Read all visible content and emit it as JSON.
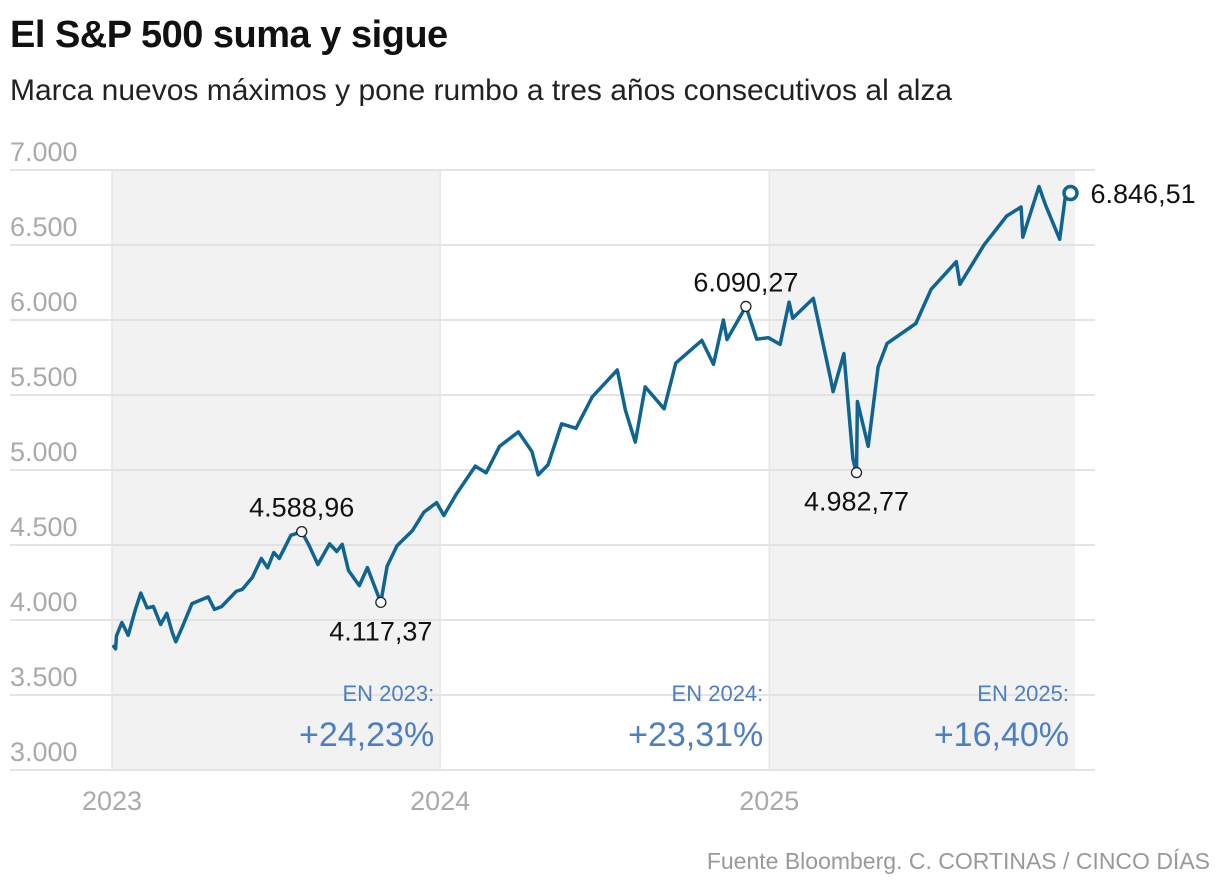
{
  "title": "El S&P 500 suma y sigue",
  "subtitle": "Marca nuevos máximos y pone rumbo a tres años consecutivos al alza",
  "source": "Fuente Bloomberg. C. CORTINAS / CINCO DÍAS",
  "colors": {
    "line": "#0f6491",
    "shade": "#f2f2f2",
    "grid": "#dcdcdc",
    "axis_text": "#aaaaaa",
    "yearly": "#4d7fc0"
  },
  "chart_data": {
    "type": "line",
    "title": "El S&P 500 suma y sigue",
    "subtitle": "Marca nuevos máximos y pone rumbo a tres años consecutivos al alza",
    "ylim": [
      3000,
      7000
    ],
    "xlim": [
      "2023-01-01",
      "2025-12-07"
    ],
    "y_ticks": [
      7000,
      6500,
      6000,
      5500,
      5000,
      4500,
      4000,
      3500,
      3000
    ],
    "y_tick_labels": [
      "7.000",
      "6.500",
      "6.000",
      "5.500",
      "5.000",
      "4.500",
      "4.000",
      "3.500",
      "3.000"
    ],
    "x_ticks": [
      "2023-01-01",
      "2024-01-01",
      "2025-01-01"
    ],
    "x_tick_labels": [
      "2023",
      "2024",
      "2025"
    ],
    "grid": "horizontal",
    "shaded_years": [
      "2023",
      "2025"
    ],
    "series": [
      {
        "values": [
          [
            "2023-01-03",
            3824
          ],
          [
            "2023-01-05",
            3808
          ],
          [
            "2023-01-06",
            3895
          ],
          [
            "2023-01-12",
            3983
          ],
          [
            "2023-01-19",
            3898
          ],
          [
            "2023-01-27",
            4070
          ],
          [
            "2023-02-02",
            4180
          ],
          [
            "2023-02-09",
            4081
          ],
          [
            "2023-02-16",
            4090
          ],
          [
            "2023-02-24",
            3970
          ],
          [
            "2023-03-03",
            4045
          ],
          [
            "2023-03-09",
            3918
          ],
          [
            "2023-03-13",
            3855
          ],
          [
            "2023-03-20",
            3951
          ],
          [
            "2023-03-31",
            4109
          ],
          [
            "2023-04-18",
            4154
          ],
          [
            "2023-04-25",
            4071
          ],
          [
            "2023-05-03",
            4090
          ],
          [
            "2023-05-19",
            4191
          ],
          [
            "2023-05-26",
            4205
          ],
          [
            "2023-06-06",
            4283
          ],
          [
            "2023-06-16",
            4410
          ],
          [
            "2023-06-23",
            4348
          ],
          [
            "2023-06-30",
            4450
          ],
          [
            "2023-07-06",
            4411
          ],
          [
            "2023-07-19",
            4565
          ],
          [
            "2023-07-31",
            4589
          ],
          [
            "2023-08-08",
            4499
          ],
          [
            "2023-08-18",
            4370
          ],
          [
            "2023-08-31",
            4508
          ],
          [
            "2023-09-08",
            4457
          ],
          [
            "2023-09-14",
            4505
          ],
          [
            "2023-09-21",
            4330
          ],
          [
            "2023-10-03",
            4229
          ],
          [
            "2023-10-12",
            4349
          ],
          [
            "2023-10-20",
            4224
          ],
          [
            "2023-10-27",
            4117
          ],
          [
            "2023-11-03",
            4358
          ],
          [
            "2023-11-14",
            4495
          ],
          [
            "2023-12-01",
            4595
          ],
          [
            "2023-12-14",
            4719
          ],
          [
            "2023-12-28",
            4783
          ],
          [
            "2024-01-05",
            4697
          ],
          [
            "2024-01-19",
            4840
          ],
          [
            "2024-02-09",
            5026
          ],
          [
            "2024-02-21",
            4981
          ],
          [
            "2024-03-07",
            5157
          ],
          [
            "2024-03-28",
            5254
          ],
          [
            "2024-04-12",
            5123
          ],
          [
            "2024-04-19",
            4967
          ],
          [
            "2024-04-30",
            5036
          ],
          [
            "2024-05-15",
            5308
          ],
          [
            "2024-05-31",
            5278
          ],
          [
            "2024-06-18",
            5487
          ],
          [
            "2024-07-16",
            5667
          ],
          [
            "2024-07-25",
            5399
          ],
          [
            "2024-08-05",
            5186
          ],
          [
            "2024-08-16",
            5554
          ],
          [
            "2024-09-06",
            5408
          ],
          [
            "2024-09-19",
            5713
          ],
          [
            "2024-10-18",
            5864
          ],
          [
            "2024-10-31",
            5705
          ],
          [
            "2024-11-11",
            6001
          ],
          [
            "2024-11-15",
            5870
          ],
          [
            "2024-12-06",
            6090
          ],
          [
            "2024-12-18",
            5872
          ],
          [
            "2024-12-31",
            5882
          ],
          [
            "2025-01-13",
            5837
          ],
          [
            "2025-01-23",
            6119
          ],
          [
            "2025-01-27",
            6012
          ],
          [
            "2025-02-19",
            6144
          ],
          [
            "2025-03-10",
            5615
          ],
          [
            "2025-03-13",
            5522
          ],
          [
            "2025-03-25",
            5776
          ],
          [
            "2025-04-04",
            5074
          ],
          [
            "2025-04-08",
            4983
          ],
          [
            "2025-04-09",
            5457
          ],
          [
            "2025-04-21",
            5158
          ],
          [
            "2025-05-02",
            5687
          ],
          [
            "2025-05-12",
            5844
          ],
          [
            "2025-06-13",
            5977
          ],
          [
            "2025-06-30",
            6205
          ],
          [
            "2025-07-28",
            6389
          ],
          [
            "2025-08-01",
            6238
          ],
          [
            "2025-08-28",
            6502
          ],
          [
            "2025-09-22",
            6693
          ],
          [
            "2025-10-08",
            6753
          ],
          [
            "2025-10-10",
            6552
          ],
          [
            "2025-10-28",
            6890
          ],
          [
            "2025-11-04",
            6771
          ],
          [
            "2025-11-20",
            6538
          ],
          [
            "2025-11-26",
            6812
          ],
          [
            "2025-12-02",
            6847
          ]
        ]
      }
    ],
    "annotations": [
      {
        "x": "2023-07-31",
        "y": 4588.96,
        "label": "4.588,96",
        "position": "above"
      },
      {
        "x": "2023-10-27",
        "y": 4117.37,
        "label": "4.117,37",
        "position": "below"
      },
      {
        "x": "2024-12-06",
        "y": 6090.27,
        "label": "6.090,27",
        "position": "above"
      },
      {
        "x": "2025-04-08",
        "y": 4982.77,
        "label": "4.982,77",
        "position": "below"
      },
      {
        "x": "2025-12-02",
        "y": 6846.51,
        "label": "6.846,51",
        "position": "right"
      }
    ],
    "yearly_changes": [
      {
        "label": "EN 2023:",
        "value": "+24,23%"
      },
      {
        "label": "EN 2024:",
        "value": "+23,31%"
      },
      {
        "label": "EN 2025:",
        "value": "+16,40%"
      }
    ]
  }
}
